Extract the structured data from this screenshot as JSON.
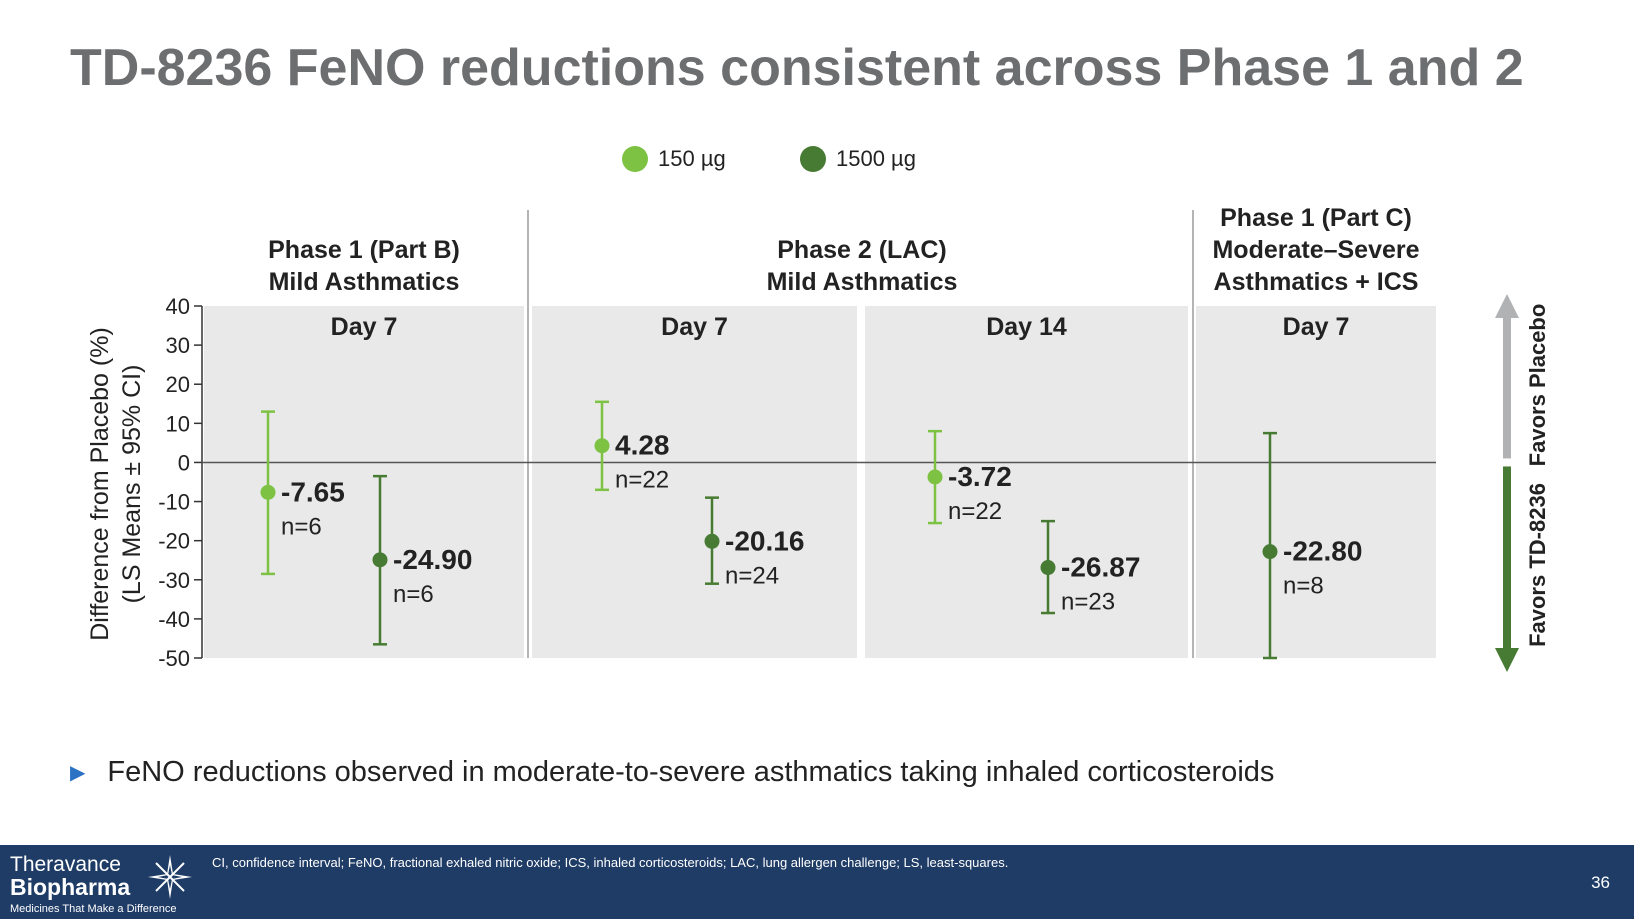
{
  "slide": {
    "title": "TD-8236 FeNO reductions consistent across Phase 1 and 2",
    "bullet": "FeNO reductions observed in moderate-to-severe asthmatics taking inhaled corticosteroids",
    "footnote": "CI, confidence interval; FeNO, fractional exhaled nitric oxide; ICS, inhaled corticosteroids; LAC, lung allergen challenge; LS, least-squares.",
    "page_number": "36",
    "logo": {
      "line1": "Theravance",
      "line2": "Biopharma",
      "tagline": "Medicines That Make a Difference"
    }
  },
  "chart_data": {
    "type": "scatter",
    "ylabel": [
      "Difference from Placebo (%)",
      "(LS Means ± 95% CI)"
    ],
    "ylim": [
      -50,
      40
    ],
    "yticks": [
      40,
      30,
      20,
      10,
      0,
      -10,
      -20,
      -30,
      -40,
      -50
    ],
    "legend": [
      {
        "name": "150 µg",
        "color": "#7dc242"
      },
      {
        "name": "1500 µg",
        "color": "#477b34"
      }
    ],
    "study_headers": [
      {
        "lines": [
          "Phase 1 (Part B)",
          "Mild Asthmatics"
        ]
      },
      {
        "lines": [
          "Phase 2 (LAC)",
          "Mild Asthmatics"
        ]
      },
      {
        "lines": [
          "Phase 1 (Part C)",
          "Moderate–Severe",
          "Asthmatics + ICS"
        ]
      }
    ],
    "panels": [
      {
        "label": "Day 7"
      },
      {
        "label": "Day 7"
      },
      {
        "label": "Day 14"
      },
      {
        "label": "Day 7"
      }
    ],
    "points": [
      {
        "panel": 0,
        "dose": "150 µg",
        "mean": -7.65,
        "ci": [
          -28.5,
          13.0
        ],
        "label": "-7.65",
        "n": "n=6"
      },
      {
        "panel": 0,
        "dose": "1500 µg",
        "mean": -24.9,
        "ci": [
          -46.5,
          -3.5
        ],
        "label": "-24.90",
        "n": "n=6"
      },
      {
        "panel": 1,
        "dose": "150 µg",
        "mean": 4.28,
        "ci": [
          -7.0,
          15.5
        ],
        "label": "4.28",
        "n": "n=22"
      },
      {
        "panel": 1,
        "dose": "1500 µg",
        "mean": -20.16,
        "ci": [
          -31.0,
          -9.0
        ],
        "label": "-20.16",
        "n": "n=24"
      },
      {
        "panel": 2,
        "dose": "150 µg",
        "mean": -3.72,
        "ci": [
          -15.5,
          8.0
        ],
        "label": "-3.72",
        "n": "n=22"
      },
      {
        "panel": 2,
        "dose": "1500 µg",
        "mean": -26.87,
        "ci": [
          -38.5,
          -15.0
        ],
        "label": "-26.87",
        "n": "n=23"
      },
      {
        "panel": 3,
        "dose": "1500 µg",
        "mean": -22.8,
        "ci": [
          -50.0,
          7.5
        ],
        "label": "-22.80",
        "n": "n=8"
      }
    ],
    "direction_labels": {
      "up": "Favors Placebo",
      "down": "Favors TD-8236"
    },
    "colors": {
      "panel_bg": "#e8e9e8",
      "zero_line": "#555555",
      "arrow_up": "#b0b2b4",
      "arrow_down": "#477b34"
    }
  }
}
